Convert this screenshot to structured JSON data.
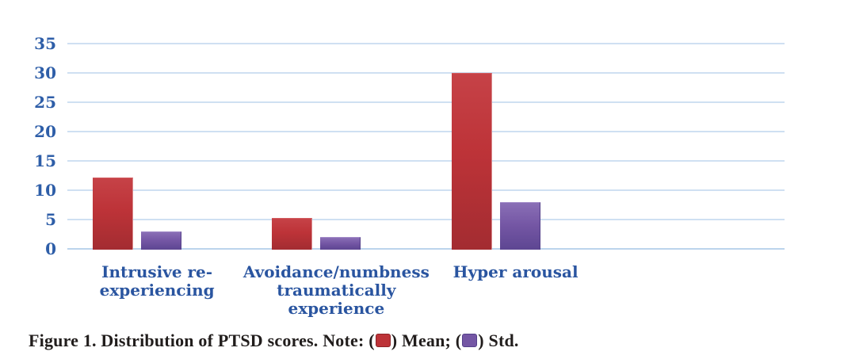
{
  "chart_data": {
    "type": "bar",
    "title": "",
    "xlabel": "",
    "ylabel": "",
    "categories": [
      "Intrusive re-experiencing",
      "Avoidance/numbness traumatically experience",
      "Hyper arousal"
    ],
    "category_lines": [
      "Intrusive re-\nexperiencing",
      "Avoidance/numbness\ntraumatically\nexperience",
      "Hyper arousal"
    ],
    "series": [
      {
        "name": "Mean",
        "color": "#bd3338",
        "values": [
          12.2,
          5.3,
          30
        ]
      },
      {
        "name": "Std",
        "color": "#7456a4",
        "values": [
          3,
          2,
          8
        ]
      }
    ],
    "yticks": [
      0,
      5,
      10,
      15,
      20,
      25,
      30,
      35
    ],
    "ylim": [
      0,
      35
    ],
    "grid": true,
    "legend_position": "in-caption",
    "colors": {
      "gridline": "#cfe0f2",
      "tick_label": "#2e5ea8",
      "category_label": "#2a55a0",
      "mean_bar": "#bd3338",
      "std_bar": "#7456a4"
    }
  },
  "caption": {
    "parts": [
      "Figure 1. Distribution of PTSD scores. Note: (",
      ") Mean; (",
      ") Std."
    ]
  }
}
